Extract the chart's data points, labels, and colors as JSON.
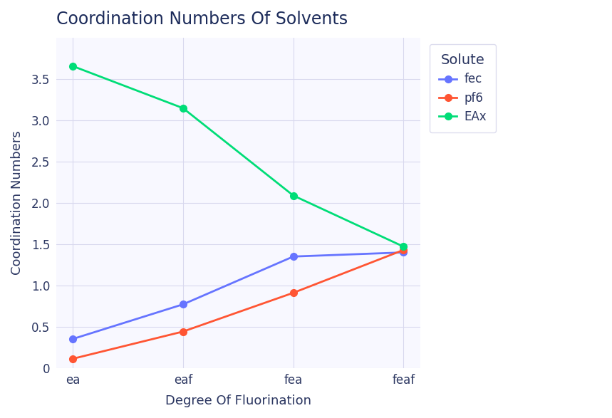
{
  "title": "Coordination Numbers Of Solvents",
  "xlabel": "Degree Of Fluorination",
  "ylabel": "Coordination Numbers",
  "legend_title": "Solute",
  "x_labels": [
    "ea",
    "eaf",
    "fea",
    "feaf"
  ],
  "series": [
    {
      "name": "fec",
      "values": [
        0.35,
        0.77,
        1.35,
        1.4
      ],
      "color": "#6674FF",
      "marker": "o"
    },
    {
      "name": "pf6",
      "values": [
        0.11,
        0.44,
        0.91,
        1.43
      ],
      "color": "#FF5533",
      "marker": "o"
    },
    {
      "name": "EAx",
      "values": [
        3.66,
        3.15,
        2.09,
        1.47
      ],
      "color": "#00DD77",
      "marker": "o"
    }
  ],
  "ylim": [
    0,
    4.0
  ],
  "yticks": [
    0,
    0.5,
    1.0,
    1.5,
    2.0,
    2.5,
    3.0,
    3.5
  ],
  "background_color": "#FFFFFF",
  "plot_bg_color": "#F8F8FF",
  "grid_color": "#D8D8EE",
  "title_color": "#1C2B5A",
  "axis_label_color": "#2A3560",
  "tick_label_color": "#2A3560",
  "legend_text_color": "#2A3560",
  "line_width": 2.0,
  "marker_size": 7,
  "title_fontsize": 17,
  "label_fontsize": 13,
  "tick_fontsize": 12,
  "legend_fontsize": 12,
  "legend_title_fontsize": 14
}
